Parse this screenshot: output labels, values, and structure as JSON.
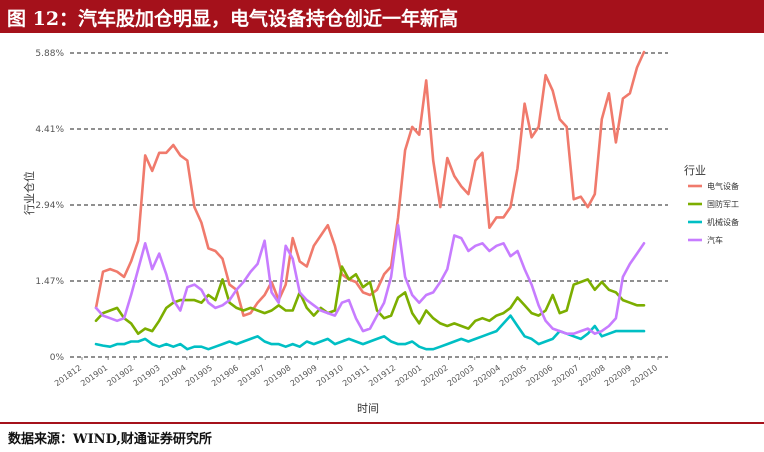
{
  "header": {
    "title": "图 12：汽车股加仓明显，电气设备持仓创近一年新高"
  },
  "footer": {
    "source": "数据来源：WIND,财通证券研究所"
  },
  "colors": {
    "header_bg": "#a5111b"
  },
  "chart_data": {
    "type": "line",
    "xlabel": "时间",
    "ylabel": "行业仓位",
    "ylim": [
      0,
      5.88
    ],
    "yticks": [
      0,
      1.47,
      2.94,
      4.41,
      5.88
    ],
    "ytick_labels": [
      "0%",
      "1.47%",
      "2.94%",
      "4.41%",
      "5.88%"
    ],
    "grid": "dashed horizontal",
    "legend": {
      "title": "行业",
      "position": "right"
    },
    "x_labels": [
      "201812",
      "201901",
      "201902",
      "201903",
      "201904",
      "201905",
      "201906",
      "201907",
      "201908",
      "201909",
      "201910",
      "201911",
      "201912",
      "202001",
      "202002",
      "202003",
      "202004",
      "202005",
      "202006",
      "202007",
      "202008",
      "202009",
      "202010"
    ],
    "series": [
      {
        "name": "电气设备",
        "color": "#f07a6c",
        "values": [
          0.95,
          1.65,
          1.7,
          1.65,
          1.55,
          1.85,
          2.25,
          3.9,
          3.6,
          3.95,
          3.95,
          4.1,
          3.9,
          3.8,
          2.9,
          2.6,
          2.1,
          2.05,
          1.9,
          1.4,
          1.3,
          0.8,
          0.85,
          1.05,
          1.2,
          1.45,
          1.1,
          1.4,
          2.3,
          1.85,
          1.75,
          2.15,
          2.35,
          2.55,
          2.15,
          1.6,
          1.5,
          1.45,
          1.25,
          1.2,
          1.3,
          1.6,
          1.75,
          2.7,
          4.0,
          4.45,
          4.3,
          5.35,
          3.8,
          2.9,
          3.85,
          3.5,
          3.3,
          3.15,
          3.8,
          3.95,
          2.5,
          2.7,
          2.7,
          2.9,
          3.65,
          4.9,
          4.25,
          4.45,
          5.45,
          5.15,
          4.6,
          4.45,
          3.05,
          3.1,
          2.9,
          3.15,
          4.6,
          5.1,
          4.15,
          5.0,
          5.1,
          5.6,
          5.9
        ]
      },
      {
        "name": "国防军工",
        "color": "#7cae00",
        "values": [
          0.7,
          0.85,
          0.9,
          0.95,
          0.75,
          0.65,
          0.45,
          0.55,
          0.5,
          0.7,
          0.95,
          1.05,
          1.1,
          1.1,
          1.1,
          1.05,
          1.2,
          1.1,
          1.5,
          1.05,
          0.95,
          0.9,
          0.95,
          0.9,
          0.85,
          0.9,
          1.0,
          0.9,
          0.9,
          1.25,
          0.95,
          0.8,
          0.95,
          0.85,
          0.9,
          1.75,
          1.5,
          1.6,
          1.35,
          1.45,
          0.9,
          0.75,
          0.8,
          1.15,
          1.25,
          0.85,
          0.65,
          0.9,
          0.75,
          0.65,
          0.6,
          0.65,
          0.6,
          0.55,
          0.7,
          0.75,
          0.7,
          0.8,
          0.85,
          0.95,
          1.15,
          1.0,
          0.85,
          0.8,
          0.9,
          1.2,
          0.85,
          0.9,
          1.4,
          1.45,
          1.5,
          1.3,
          1.45,
          1.3,
          1.25,
          1.1,
          1.05,
          1.0,
          1.0
        ]
      },
      {
        "name": "机械设备",
        "color": "#00bfc4",
        "values": [
          0.25,
          0.22,
          0.2,
          0.25,
          0.25,
          0.3,
          0.3,
          0.35,
          0.25,
          0.2,
          0.25,
          0.2,
          0.25,
          0.15,
          0.2,
          0.2,
          0.15,
          0.2,
          0.25,
          0.3,
          0.25,
          0.3,
          0.35,
          0.4,
          0.3,
          0.25,
          0.25,
          0.2,
          0.25,
          0.2,
          0.3,
          0.25,
          0.3,
          0.35,
          0.25,
          0.3,
          0.35,
          0.3,
          0.25,
          0.3,
          0.35,
          0.4,
          0.3,
          0.25,
          0.25,
          0.3,
          0.2,
          0.15,
          0.15,
          0.2,
          0.25,
          0.3,
          0.35,
          0.3,
          0.35,
          0.4,
          0.45,
          0.5,
          0.65,
          0.8,
          0.6,
          0.4,
          0.35,
          0.25,
          0.3,
          0.35,
          0.5,
          0.45,
          0.4,
          0.35,
          0.45,
          0.6,
          0.4,
          0.45,
          0.5,
          0.5,
          0.5,
          0.5,
          0.5
        ]
      },
      {
        "name": "汽车",
        "color": "#c77cff",
        "values": [
          0.95,
          0.8,
          0.75,
          0.7,
          0.75,
          1.2,
          1.7,
          2.2,
          1.7,
          2.0,
          1.6,
          1.1,
          0.9,
          1.35,
          1.4,
          1.3,
          1.05,
          0.95,
          1.0,
          1.1,
          1.3,
          1.45,
          1.65,
          1.8,
          2.25,
          1.25,
          1.05,
          2.15,
          1.9,
          1.25,
          1.1,
          1.0,
          0.9,
          0.85,
          0.8,
          1.05,
          1.1,
          0.75,
          0.5,
          0.55,
          0.8,
          1.05,
          1.55,
          2.55,
          1.55,
          1.2,
          1.05,
          1.2,
          1.25,
          1.45,
          1.7,
          2.35,
          2.3,
          2.05,
          2.15,
          2.2,
          2.05,
          2.15,
          2.2,
          1.95,
          2.05,
          1.7,
          1.4,
          1.0,
          0.7,
          0.55,
          0.5,
          0.45,
          0.45,
          0.5,
          0.55,
          0.45,
          0.5,
          0.6,
          0.75,
          1.55,
          1.8,
          2.0,
          2.2
        ]
      }
    ]
  }
}
